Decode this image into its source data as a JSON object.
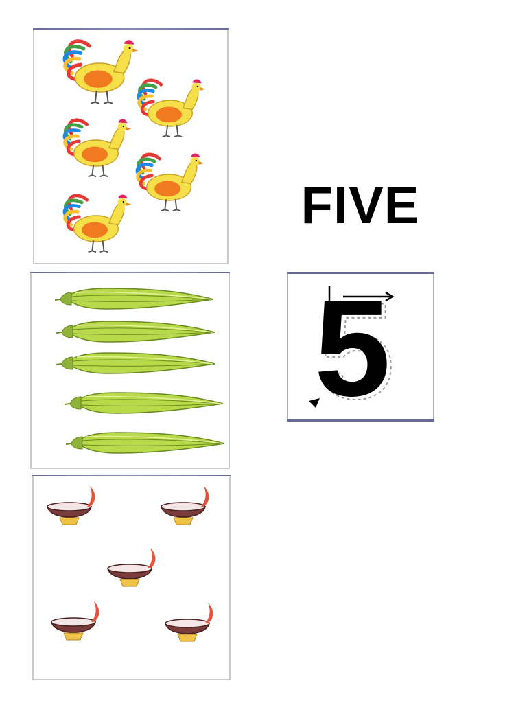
{
  "number_word": "FIVE",
  "digit": "5",
  "panels": [
    {
      "subject": "rooster",
      "count": 5
    },
    {
      "subject": "okra",
      "count": 5
    },
    {
      "subject": "oil-lamp",
      "count": 5
    }
  ],
  "colors": {
    "rooster_body": "#f6e04a",
    "rooster_wing": "#f07a1f",
    "rooster_comb": "#e0245e",
    "okra_green": "#b7d94a",
    "lamp_bowl": "#7a3b3b",
    "lamp_base": "#f0c24a",
    "flame": "#e8543a",
    "frame_accent": "#6b6b9a"
  }
}
